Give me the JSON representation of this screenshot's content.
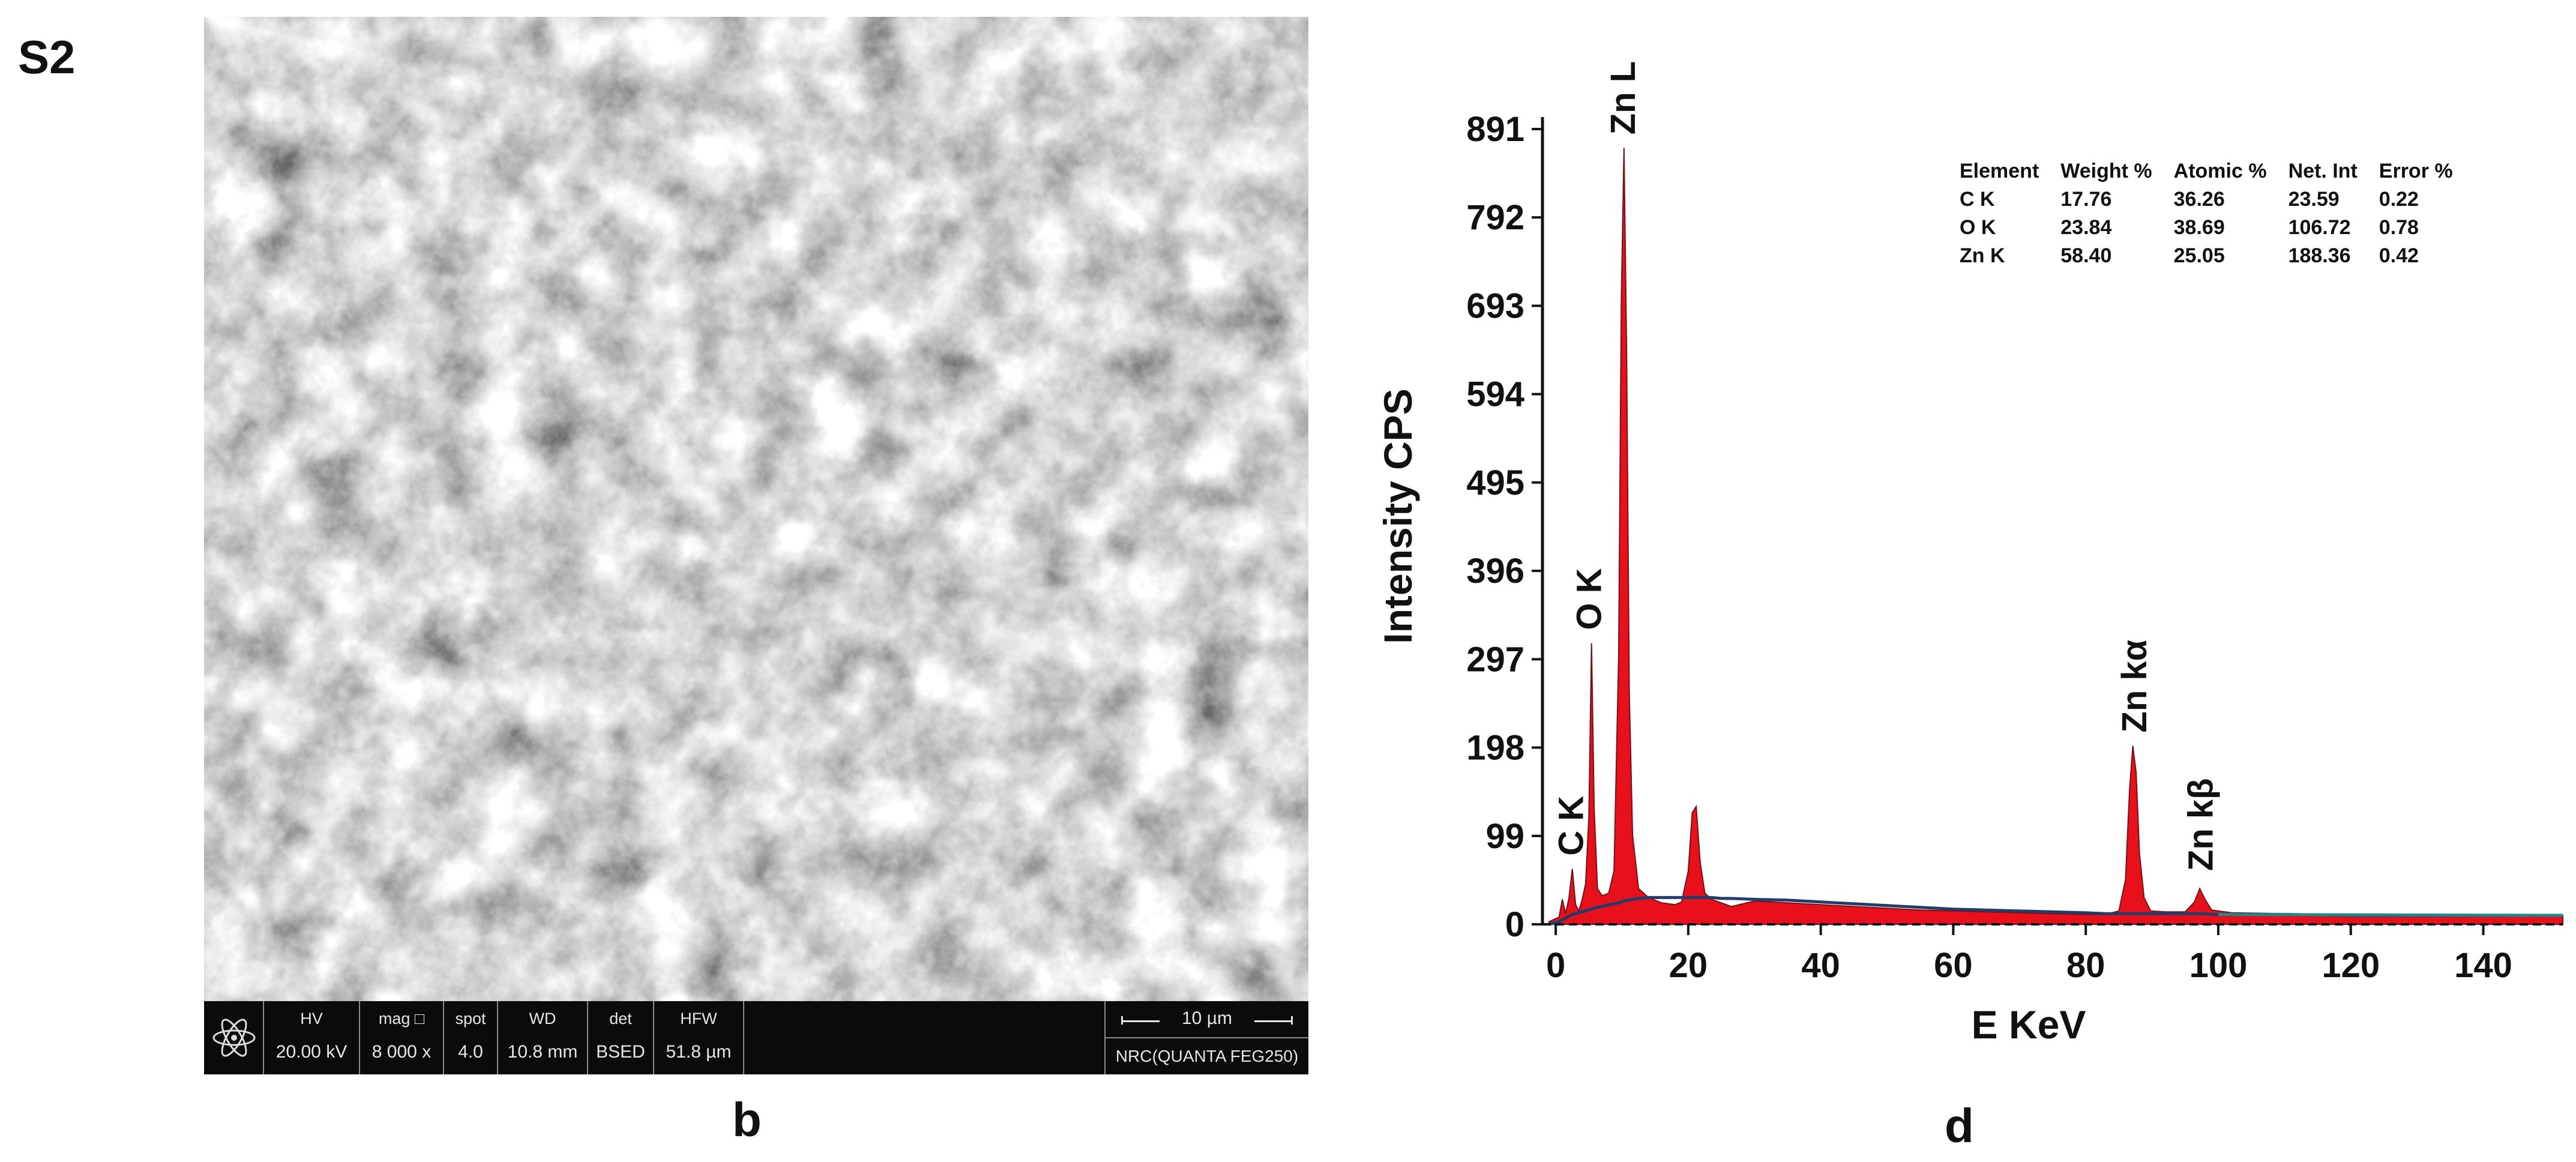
{
  "figure_label": "S2",
  "sem_panel": {
    "label": "b",
    "databar": {
      "columns": [
        {
          "header": "HV",
          "value": "20.00 kV"
        },
        {
          "header": "mag □",
          "value": "8 000 x"
        },
        {
          "header": "spot",
          "value": "4.0"
        },
        {
          "header": "WD",
          "value": "10.8 mm"
        },
        {
          "header": "det",
          "value": "BSED"
        },
        {
          "header": "HFW",
          "value": "51.8 µm"
        }
      ],
      "scale_bar_label": "10 µm",
      "instrument": "NRC(QUANTA FEG250)"
    },
    "colors": {
      "databar_bg": "#0b0b0b",
      "databar_text": "#e6e6e6"
    }
  },
  "edx_panel": {
    "label": "d",
    "composition_table": {
      "headers": [
        "Element",
        "Weight %",
        "Atomic %",
        "Net. Int",
        "Error %"
      ],
      "rows": [
        [
          "C K",
          "17.76",
          "36.26",
          "23.59",
          "0.22"
        ],
        [
          "O K",
          "23.84",
          "38.69",
          "106.72",
          "0.78"
        ],
        [
          "Zn K",
          "58.40",
          "25.05",
          "188.36",
          "0.42"
        ]
      ]
    }
  },
  "chart_data": {
    "type": "area",
    "title": "",
    "xlabel": "E KeV",
    "ylabel": "Intensity CPS",
    "xlim": [
      -2,
      152
    ],
    "ylim": [
      0,
      891
    ],
    "x_ticks": [
      0,
      20,
      40,
      60,
      80,
      100,
      120,
      140
    ],
    "y_ticks": [
      0,
      99,
      198,
      297,
      396,
      495,
      594,
      693,
      792,
      891
    ],
    "grid": false,
    "legend": "none",
    "peak_labels": [
      {
        "text": "C K",
        "x": 2.5,
        "y": 62
      },
      {
        "text": "O K",
        "x": 5.2,
        "y": 315
      },
      {
        "text": "Zn L",
        "x": 10.3,
        "y": 870
      },
      {
        "text": "Zn kα",
        "x": 87.5,
        "y": 200
      },
      {
        "text": "Zn kβ",
        "x": 97.5,
        "y": 45
      }
    ],
    "series": [
      {
        "x": [
          -1,
          0.5,
          1,
          1.5,
          2,
          2.5,
          3,
          3.5,
          4,
          4.5,
          5,
          5.4,
          5.8,
          6.3,
          7,
          8,
          8.8,
          9.5,
          9.9,
          10.3,
          10.7,
          11.1,
          11.6,
          12.5,
          14,
          16,
          18,
          19,
          20,
          20.6,
          21.2,
          21.8,
          22.5,
          23.5,
          25,
          26.5,
          30,
          35,
          40,
          45,
          50,
          55,
          60,
          65,
          70,
          75,
          80,
          83,
          85,
          86,
          86.6,
          87.1,
          87.6,
          88.1,
          88.8,
          89.8,
          92,
          95,
          96.4,
          97.2,
          98,
          99,
          102,
          110,
          120,
          130,
          140,
          152
        ],
        "y": [
          3,
          8,
          28,
          12,
          30,
          62,
          22,
          15,
          28,
          45,
          120,
          315,
          130,
          40,
          32,
          35,
          60,
          300,
          700,
          870,
          640,
          260,
          100,
          40,
          30,
          24,
          22,
          25,
          60,
          125,
          132,
          70,
          35,
          28,
          24,
          20,
          26,
          24,
          22,
          20,
          18,
          16,
          15,
          14,
          13,
          12,
          11,
          11,
          15,
          50,
          150,
          200,
          170,
          80,
          30,
          15,
          14,
          14,
          25,
          40,
          28,
          16,
          13,
          12,
          11,
          10,
          10,
          10
        ],
        "baseline": [
          0,
          3,
          5,
          7,
          9,
          11,
          12,
          13,
          14,
          15,
          16,
          17,
          18,
          19,
          20,
          22,
          23,
          24,
          25,
          26,
          27,
          27,
          28,
          29,
          30,
          30,
          30,
          30,
          30,
          30,
          30,
          30,
          30,
          30,
          29,
          29,
          28,
          27,
          25,
          23,
          21,
          19,
          17,
          16,
          15,
          14,
          13,
          12,
          12,
          12,
          12,
          12,
          12,
          12,
          12,
          12,
          12,
          12,
          12,
          12,
          12,
          11,
          11,
          11,
          10,
          10,
          10,
          10
        ]
      }
    ]
  }
}
